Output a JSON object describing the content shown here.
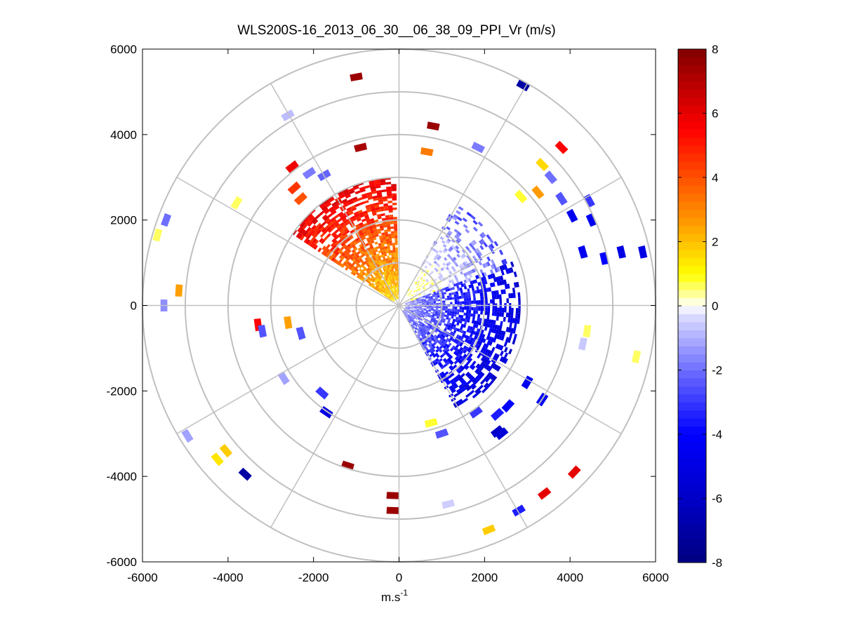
{
  "chart_data": {
    "type": "ppi_polar_scatter",
    "title": "WLS200S-16_2013_06_30__06_38_09_PPI_Vr (m/s)",
    "xlabel": "m.s",
    "xlabel_superscript": "-1",
    "ylabel": "",
    "xlim": [
      -6000,
      6000
    ],
    "ylim": [
      -6000,
      6000
    ],
    "x_ticks": [
      -6000,
      -4000,
      -2000,
      0,
      2000,
      4000,
      6000
    ],
    "y_ticks": [
      -6000,
      -4000,
      -2000,
      0,
      2000,
      4000,
      6000
    ],
    "range_rings": [
      1000,
      2000,
      3000,
      4000,
      5000,
      6000
    ],
    "spoke_angles_deg": [
      0,
      30,
      60,
      90,
      120,
      150,
      180,
      210,
      240,
      270,
      300,
      330
    ],
    "colorbar": {
      "min": -8,
      "max": 8,
      "ticks": [
        -8,
        -6,
        -4,
        -2,
        0,
        2,
        4,
        6,
        8
      ],
      "colormap": "blue-white-yellow-red"
    },
    "colors": {
      "grid": "#c0c0c0",
      "axes": "#000000",
      "background": "#ffffff"
    },
    "sectors": [
      {
        "name": "nw-positive-core",
        "az_from": 305,
        "az_to": 359,
        "r_from": 150,
        "r_to": 3000,
        "v_near": 1.5,
        "v_far": 6.0,
        "density": 0.95
      },
      {
        "name": "east-negative-core",
        "az_from": 70,
        "az_to": 150,
        "r_from": 150,
        "r_to": 2800,
        "v_near": -1.5,
        "v_far": -5.5,
        "density": 0.85
      },
      {
        "name": "ne-weak-band",
        "az_from": 30,
        "az_to": 70,
        "r_from": 300,
        "r_to": 2700,
        "v_near": 0.8,
        "v_far": -2.5,
        "density": 0.45
      }
    ],
    "scattered_gates": [
      {
        "x": -1000,
        "y": 5350,
        "v": 7.5
      },
      {
        "x": 2900,
        "y": 5150,
        "v": -7.0
      },
      {
        "x": -2600,
        "y": 4450,
        "v": -0.8
      },
      {
        "x": 800,
        "y": 4200,
        "v": 7.5
      },
      {
        "x": 1850,
        "y": 3700,
        "v": -1.8
      },
      {
        "x": 3800,
        "y": 3700,
        "v": 5.5
      },
      {
        "x": -900,
        "y": 3700,
        "v": 7.2
      },
      {
        "x": 650,
        "y": 3600,
        "v": 3.2
      },
      {
        "x": -2500,
        "y": 3250,
        "v": 5.8
      },
      {
        "x": -2100,
        "y": 3100,
        "v": -1.8
      },
      {
        "x": -1750,
        "y": 3050,
        "v": -2.2
      },
      {
        "x": 3350,
        "y": 3300,
        "v": 1.6
      },
      {
        "x": -2450,
        "y": 2750,
        "v": 4.5
      },
      {
        "x": -2300,
        "y": 2500,
        "v": 4.0
      },
      {
        "x": 3550,
        "y": 3000,
        "v": -2.0
      },
      {
        "x": 2850,
        "y": 2550,
        "v": 0.8
      },
      {
        "x": 3250,
        "y": 2650,
        "v": 2.6
      },
      {
        "x": -3800,
        "y": 2400,
        "v": 0.6
      },
      {
        "x": 3800,
        "y": 2500,
        "v": -2.5
      },
      {
        "x": 4450,
        "y": 2450,
        "v": -3.0
      },
      {
        "x": -5450,
        "y": 2000,
        "v": -2.0
      },
      {
        "x": 4050,
        "y": 2100,
        "v": -4.5
      },
      {
        "x": 4500,
        "y": 2000,
        "v": -4.5
      },
      {
        "x": -5650,
        "y": 1650,
        "v": 0.6
      },
      {
        "x": 5200,
        "y": 1250,
        "v": -5.0
      },
      {
        "x": 5700,
        "y": 1250,
        "v": -5.0
      },
      {
        "x": 4300,
        "y": 1250,
        "v": -4.5
      },
      {
        "x": 4800,
        "y": 1100,
        "v": -4.0
      },
      {
        "x": -5150,
        "y": 350,
        "v": 2.5
      },
      {
        "x": -5500,
        "y": 0,
        "v": -1.5
      },
      {
        "x": -3300,
        "y": -450,
        "v": 5.5
      },
      {
        "x": -3200,
        "y": -600,
        "v": -2.5
      },
      {
        "x": -2600,
        "y": -400,
        "v": 2.5
      },
      {
        "x": -2300,
        "y": -650,
        "v": -2.5
      },
      {
        "x": 4400,
        "y": -600,
        "v": 0.6
      },
      {
        "x": 4300,
        "y": -900,
        "v": -0.6
      },
      {
        "x": 5550,
        "y": -1200,
        "v": 0.6
      },
      {
        "x": -2700,
        "y": -1700,
        "v": -1.2
      },
      {
        "x": -1800,
        "y": -2050,
        "v": -3.0
      },
      {
        "x": -1700,
        "y": -2500,
        "v": -5.0
      },
      {
        "x": 3000,
        "y": -1800,
        "v": -4.5
      },
      {
        "x": 3350,
        "y": -2200,
        "v": -4.5
      },
      {
        "x": 2550,
        "y": -2350,
        "v": -4.0
      },
      {
        "x": 2300,
        "y": -2550,
        "v": -3.5
      },
      {
        "x": 1800,
        "y": -2500,
        "v": -3.0
      },
      {
        "x": 750,
        "y": -2750,
        "v": 0.8
      },
      {
        "x": 1000,
        "y": -3000,
        "v": -2.5
      },
      {
        "x": 2300,
        "y": -2950,
        "v": -6.0
      },
      {
        "x": 2400,
        "y": -3000,
        "v": -5.5
      },
      {
        "x": -4950,
        "y": -3050,
        "v": -1.2
      },
      {
        "x": -4050,
        "y": -3400,
        "v": 1.8
      },
      {
        "x": -4250,
        "y": -3600,
        "v": 1.4
      },
      {
        "x": -3600,
        "y": -3950,
        "v": -7.0
      },
      {
        "x": -1200,
        "y": -3750,
        "v": 7.5
      },
      {
        "x": 4100,
        "y": -3900,
        "v": 6.0
      },
      {
        "x": 3400,
        "y": -4400,
        "v": 6.0
      },
      {
        "x": -150,
        "y": -4450,
        "v": 7.5
      },
      {
        "x": -150,
        "y": -4800,
        "v": 7.5
      },
      {
        "x": 1150,
        "y": -4650,
        "v": -0.5
      },
      {
        "x": 2800,
        "y": -4800,
        "v": -3.5
      },
      {
        "x": 2100,
        "y": -5250,
        "v": 1.8
      }
    ]
  }
}
